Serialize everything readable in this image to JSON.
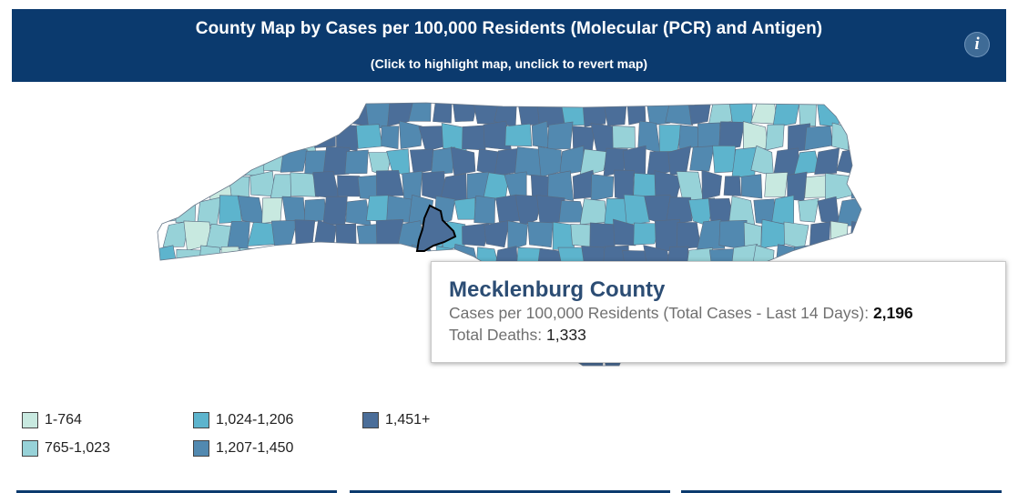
{
  "banner": {
    "title": "County Map by Cases per 100,000 Residents (Molecular (PCR) and Antigen)",
    "subtitle": "(Click to highlight map, unclick to revert map)",
    "info_icon": "info-icon",
    "info_glyph": "i"
  },
  "colors": {
    "banner_bg": "#0b3a6e",
    "bin1": "#c8e9e0",
    "bin2": "#97d2d8",
    "bin3": "#5db4cd",
    "bin4": "#5289b0",
    "bin5": "#4b6e99",
    "highlight_outline": "#000000"
  },
  "tooltip": {
    "county": "Mecklenburg County",
    "cases_label": "Cases per 100,000 Residents (Total Cases - Last 14 Days):",
    "cases_value": "2,196",
    "deaths_label": "Total Deaths:",
    "deaths_value": "1,333"
  },
  "legend": [
    {
      "label": "1-764",
      "color": "#c8e9e0"
    },
    {
      "label": "765-1,023",
      "color": "#97d2d8"
    },
    {
      "label": "1,024-1,206",
      "color": "#5db4cd"
    },
    {
      "label": "1,207-1,450",
      "color": "#5289b0"
    },
    {
      "label": "1,451+",
      "color": "#4b6e99"
    }
  ]
}
